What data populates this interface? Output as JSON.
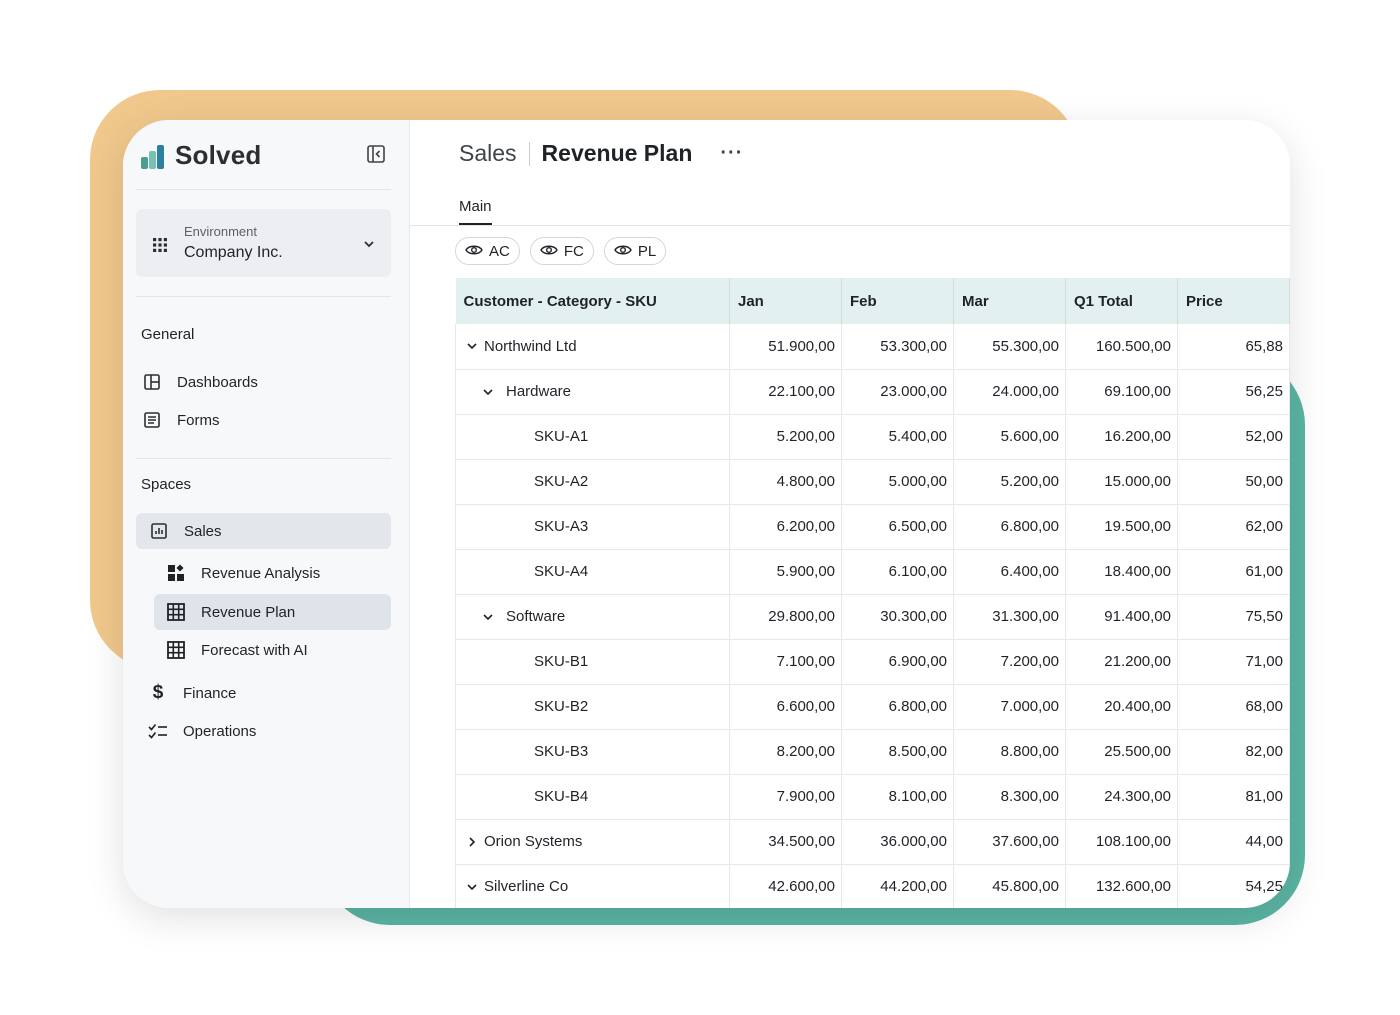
{
  "app": {
    "brand": "Solved",
    "colors": {
      "accent_orange": "#f0c88c",
      "accent_teal": "#5bb5a4",
      "header_bg": "#e2f1ef"
    }
  },
  "sidebar": {
    "environment_label": "Environment",
    "environment_value": "Company Inc.",
    "general_title": "General",
    "general_items": [
      {
        "label": "Dashboards",
        "icon": "dashboard-icon"
      },
      {
        "label": "Forms",
        "icon": "form-icon"
      }
    ],
    "spaces_title": "Spaces",
    "spaces_items": [
      {
        "label": "Sales",
        "icon": "report-icon",
        "active": true
      },
      {
        "label": "Revenue Analysis",
        "icon": "widgets-icon",
        "child": true
      },
      {
        "label": "Revenue Plan",
        "icon": "table-icon",
        "child": true,
        "selected": true
      },
      {
        "label": "Forecast with AI",
        "icon": "table-icon",
        "child": true
      },
      {
        "label": "Finance",
        "icon": "dollar-icon"
      },
      {
        "label": "Operations",
        "icon": "checklist-icon"
      }
    ]
  },
  "header": {
    "parent": "Sales",
    "current": "Revenue Plan",
    "more": "···"
  },
  "tabs": {
    "main": "Main"
  },
  "chips": [
    "AC",
    "FC",
    "PL"
  ],
  "table": {
    "columns": [
      "Customer - Category - SKU",
      "Jan",
      "Feb",
      "Mar",
      "Q1 Total",
      "Price"
    ],
    "rows": [
      {
        "label": "Northwind Ltd",
        "level": 0,
        "toggle": "expanded",
        "values": [
          "51.900,00",
          "53.300,00",
          "55.300,00",
          "160.500,00",
          "65,88"
        ]
      },
      {
        "label": "Hardware",
        "level": 1,
        "toggle": "expanded",
        "values": [
          "22.100,00",
          "23.000,00",
          "24.000,00",
          "69.100,00",
          "56,25"
        ]
      },
      {
        "label": "SKU-A1",
        "level": 2,
        "values": [
          "5.200,00",
          "5.400,00",
          "5.600,00",
          "16.200,00",
          "52,00"
        ]
      },
      {
        "label": "SKU-A2",
        "level": 2,
        "values": [
          "4.800,00",
          "5.000,00",
          "5.200,00",
          "15.000,00",
          "50,00"
        ]
      },
      {
        "label": "SKU-A3",
        "level": 2,
        "values": [
          "6.200,00",
          "6.500,00",
          "6.800,00",
          "19.500,00",
          "62,00"
        ]
      },
      {
        "label": "SKU-A4",
        "level": 2,
        "values": [
          "5.900,00",
          "6.100,00",
          "6.400,00",
          "18.400,00",
          "61,00"
        ]
      },
      {
        "label": "Software",
        "level": 1,
        "toggle": "expanded",
        "values": [
          "29.800,00",
          "30.300,00",
          "31.300,00",
          "91.400,00",
          "75,50"
        ]
      },
      {
        "label": "SKU-B1",
        "level": 2,
        "values": [
          "7.100,00",
          "6.900,00",
          "7.200,00",
          "21.200,00",
          "71,00"
        ]
      },
      {
        "label": "SKU-B2",
        "level": 2,
        "values": [
          "6.600,00",
          "6.800,00",
          "7.000,00",
          "20.400,00",
          "68,00"
        ]
      },
      {
        "label": "SKU-B3",
        "level": 2,
        "values": [
          "8.200,00",
          "8.500,00",
          "8.800,00",
          "25.500,00",
          "82,00"
        ]
      },
      {
        "label": "SKU-B4",
        "level": 2,
        "values": [
          "7.900,00",
          "8.100,00",
          "8.300,00",
          "24.300,00",
          "81,00"
        ]
      },
      {
        "label": "Orion Systems",
        "level": 0,
        "toggle": "collapsed",
        "values": [
          "34.500,00",
          "36.000,00",
          "37.600,00",
          "108.100,00",
          "44,00"
        ]
      },
      {
        "label": "Silverline Co",
        "level": 0,
        "toggle": "expanded",
        "values": [
          "42.600,00",
          "44.200,00",
          "45.800,00",
          "132.600,00",
          "54,25"
        ]
      }
    ]
  }
}
